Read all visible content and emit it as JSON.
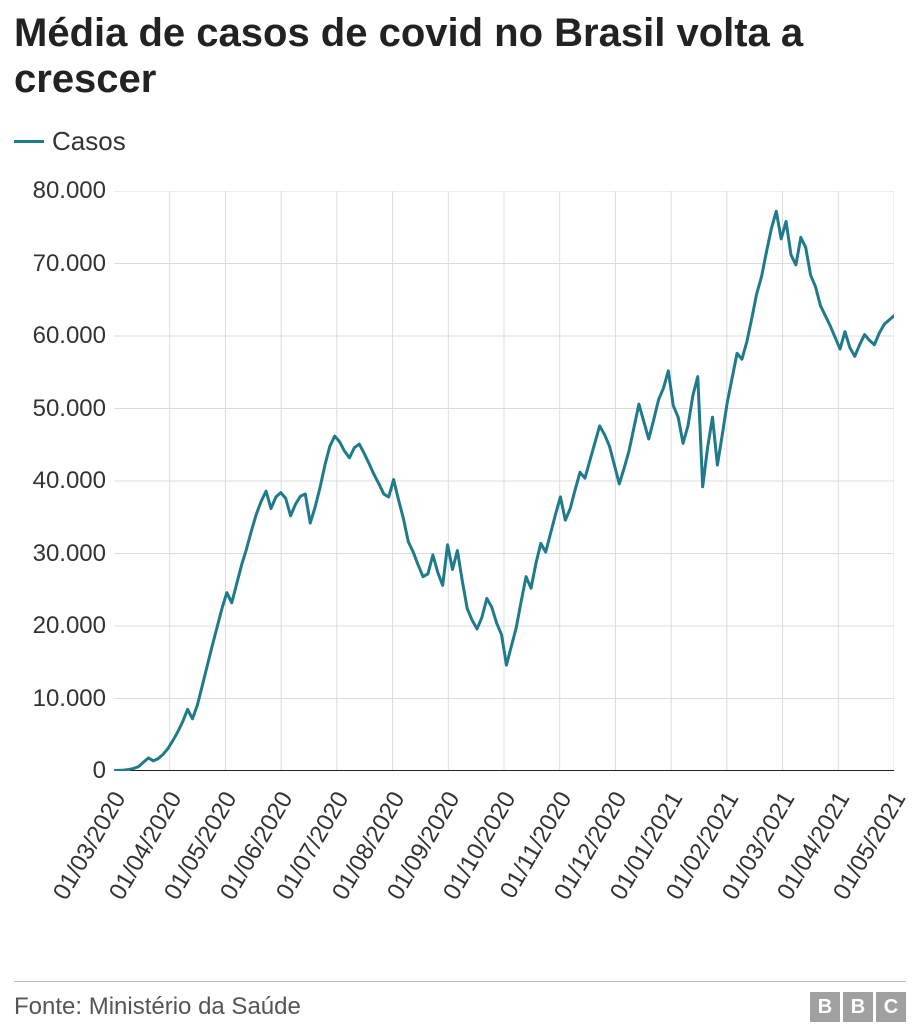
{
  "title": "Média de casos de covid no Brasil volta a crescer",
  "legend": {
    "label": "Casos"
  },
  "footer": {
    "source": "Fonte: Ministério da Saúde",
    "logo_letters": [
      "B",
      "B",
      "C"
    ],
    "logo_color": "#a0a0a0"
  },
  "chart": {
    "type": "line",
    "line_color": "#1f7a8c",
    "line_width": 3,
    "background_color": "#ffffff",
    "grid_color": "#dcdcdc",
    "axis_color": "#222222",
    "tick_font_size": 24,
    "title_font_size": 40,
    "ylim": [
      0,
      80000
    ],
    "ytick_step": 10000,
    "ytick_labels": [
      "0",
      "10.000",
      "20.000",
      "30.000",
      "40.000",
      "50.000",
      "60.000",
      "70.000",
      "80.000"
    ],
    "x_categories": [
      "01/03/2020",
      "01/04/2020",
      "01/05/2020",
      "01/06/2020",
      "01/07/2020",
      "01/08/2020",
      "01/09/2020",
      "01/10/2020",
      "01/11/2020",
      "01/12/2020",
      "01/01/2021",
      "01/02/2021",
      "01/03/2021",
      "01/04/2021",
      "01/05/2021"
    ],
    "series": [
      {
        "name": "Casos",
        "color": "#1f7a8c",
        "values": [
          50,
          80,
          120,
          200,
          350,
          600,
          1200,
          1800,
          1400,
          1700,
          2300,
          3100,
          4200,
          5400,
          6800,
          8500,
          7200,
          9100,
          11800,
          14500,
          17200,
          19800,
          22400,
          24600,
          23200,
          25800,
          28400,
          30600,
          33100,
          35400,
          37200,
          38600,
          36200,
          37800,
          38400,
          37600,
          35200,
          36800,
          37900,
          38200,
          34200,
          36400,
          39100,
          42200,
          44800,
          46200,
          45400,
          44100,
          43200,
          44600,
          45100,
          43800,
          42400,
          40900,
          39600,
          38200,
          37800,
          40200,
          37400,
          34800,
          31600,
          30200,
          28400,
          26800,
          27200,
          29800,
          27400,
          25600,
          31200,
          27800,
          30400,
          26200,
          22400,
          20800,
          19600,
          21200,
          23800,
          22600,
          20400,
          18800,
          14600,
          17200,
          19800,
          23400,
          26800,
          25200,
          28600,
          31400,
          30200,
          32800,
          35400,
          37800,
          34600,
          36200,
          38800,
          41200,
          40400,
          42800,
          45200,
          47600,
          46400,
          44800,
          42200,
          39600,
          41800,
          44200,
          47400,
          50600,
          48200,
          45800,
          48400,
          51200,
          52800,
          55200,
          50400,
          48800,
          45200,
          47600,
          51800,
          54400,
          39200,
          44600,
          48800,
          42200,
          46400,
          50800,
          54200,
          57600,
          56800,
          59200,
          62400,
          65800,
          68200,
          71600,
          74800,
          77200,
          73400,
          75800,
          71200,
          69800,
          73600,
          72200,
          68400,
          66800,
          64200,
          62800,
          61400,
          59800,
          58200,
          60600,
          58400,
          57200,
          58800,
          60200,
          59400,
          58800,
          60400,
          61600,
          62200,
          62800
        ]
      }
    ]
  }
}
